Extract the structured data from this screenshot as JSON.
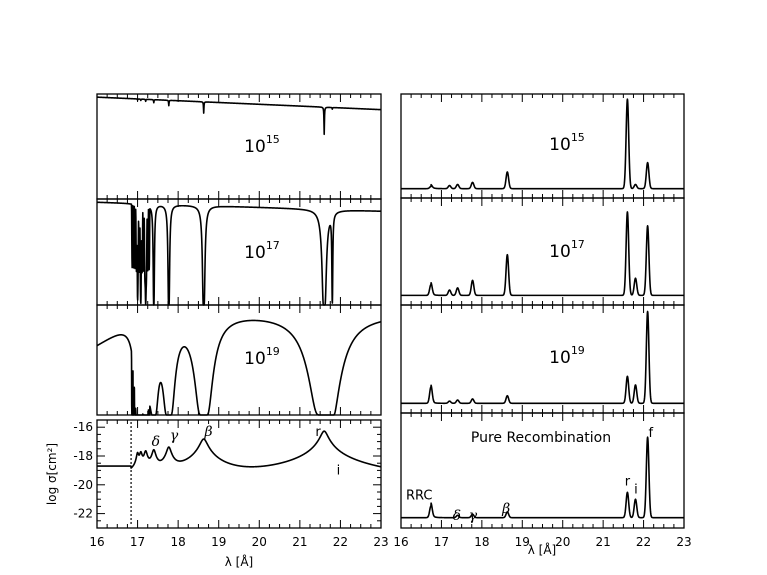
{
  "chart_data": [
    {
      "type": "line",
      "panel": "left-1",
      "density_label": {
        "base": "10",
        "exp": "15"
      },
      "xlim": [
        16,
        23
      ],
      "x": [
        16,
        21.6,
        21.63,
        21.66,
        23
      ],
      "y": [
        0.97,
        0.86,
        0.78,
        0.86,
        0.85
      ]
    },
    {
      "type": "line",
      "panel": "left-2",
      "density_label": {
        "base": "10",
        "exp": "17"
      },
      "xlim": [
        16,
        23
      ]
    },
    {
      "type": "line",
      "panel": "left-3",
      "density_label": {
        "base": "10",
        "exp": "19"
      },
      "xlim": [
        16,
        23
      ]
    },
    {
      "type": "line",
      "panel": "left-4",
      "xlim": [
        16,
        23
      ],
      "ylim": [
        -23,
        -15.5
      ],
      "xlabel": "λ [Å]",
      "ylabel": "log σ[cm²]",
      "xticks": [
        "16",
        "17",
        "18",
        "19",
        "20",
        "21",
        "22",
        "23"
      ],
      "yticks": [
        "-22",
        "-20",
        "-18",
        "-16"
      ],
      "edge_marker_x": 16.84,
      "annotations": [
        {
          "text": "δ",
          "x": 17.45,
          "y": -17.3
        },
        {
          "text": "γ",
          "x": 17.9,
          "y": -16.9
        },
        {
          "text": "β",
          "x": 18.75,
          "y": -16.6
        },
        {
          "text": "r",
          "x": 21.45,
          "y": -16.6
        },
        {
          "text": "i",
          "x": 21.95,
          "y": -19.3
        }
      ]
    },
    {
      "type": "line",
      "panel": "right-1",
      "density_label": {
        "base": "10",
        "exp": "15"
      },
      "xlim": [
        16,
        23
      ]
    },
    {
      "type": "line",
      "panel": "right-2",
      "density_label": {
        "base": "10",
        "exp": "17"
      },
      "xlim": [
        16,
        23
      ]
    },
    {
      "type": "line",
      "panel": "right-3",
      "density_label": {
        "base": "10",
        "exp": "19"
      },
      "xlim": [
        16,
        23
      ]
    },
    {
      "type": "line",
      "panel": "right-4",
      "title": "Pure Recombination",
      "xlim": [
        16,
        23
      ],
      "xlabel": "λ [Å]",
      "xticks": [
        "16",
        "17",
        "18",
        "19",
        "20",
        "21",
        "22",
        "23"
      ],
      "annotations": [
        {
          "text": "RRC",
          "x": 16.45,
          "y": 0.25
        },
        {
          "text": "δ",
          "x": 17.38,
          "y": 0.07
        },
        {
          "text": "γ",
          "x": 17.78,
          "y": 0.07
        },
        {
          "text": "β",
          "x": 18.6,
          "y": 0.13
        },
        {
          "text": "r",
          "x": 21.6,
          "y": 0.37
        },
        {
          "text": "i",
          "x": 21.81,
          "y": 0.3
        },
        {
          "text": "f",
          "x": 22.18,
          "y": 0.79
        }
      ]
    }
  ]
}
